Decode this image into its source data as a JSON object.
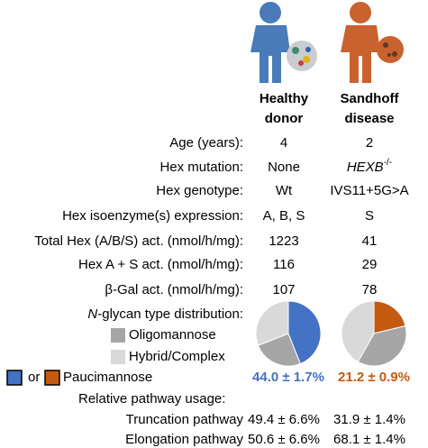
{
  "columns": [
    "Healthy donor",
    "Sandhoff disease"
  ],
  "column_lines": [
    [
      "Healthy",
      "donor"
    ],
    [
      "Sandhoff",
      "disease"
    ]
  ],
  "rows": [
    {
      "label": "Age (years):",
      "values": [
        "4",
        "2"
      ]
    },
    {
      "label": "Hex mutation:",
      "values": [
        "None",
        {
          "gene": "HEXB",
          "superscript": "-/-"
        }
      ]
    },
    {
      "label": "Hex genotype:",
      "values": [
        "Wt",
        "IVS11+5G>A"
      ]
    },
    {
      "label": "Hex isoenzyme(s) expression:",
      "values": [
        "A, B, S",
        "S"
      ]
    },
    {
      "label": "Total Hex (A/B/S) act. (nmol/h/mg):",
      "values": [
        "1223",
        "41"
      ]
    },
    {
      "label": "Hex A + S act. (nmol/h/mg):",
      "values": [
        "116",
        "29"
      ]
    },
    {
      "label": "β-Gal act. (nmol/h/mg):",
      "values": [
        "107",
        "78"
      ]
    }
  ],
  "glycan": {
    "title": {
      "italic": "N",
      "rest": "-glycan type distribution:"
    },
    "types": [
      {
        "name": "Oligomannose",
        "color": "#a6a6a6"
      },
      {
        "name": "Hybrid/Complex",
        "color": "#d9d9d9"
      },
      {
        "name": "Paucimannose",
        "colors": [
          "#4472c4",
          "#c55a11"
        ]
      }
    ],
    "or": "or",
    "pies": [
      {
        "values": [
          25,
          31,
          44.0
        ],
        "value_label": "44.0 ± 1.7%"
      },
      {
        "values": [
          37,
          41.8,
          21.2
        ],
        "value_label": "21.2 ± 0.9%"
      }
    ]
  },
  "pathway": {
    "title": "Relative pathway usage:",
    "rows": [
      {
        "label": "Truncation pathway",
        "values": [
          "49.4 ± 6.6%",
          "31.9 ± 1.4%"
        ]
      },
      {
        "label": "Elongation pathway",
        "values": [
          "50.6 ± 6.6%",
          "68.1 ± 1.4%"
        ]
      }
    ]
  }
}
